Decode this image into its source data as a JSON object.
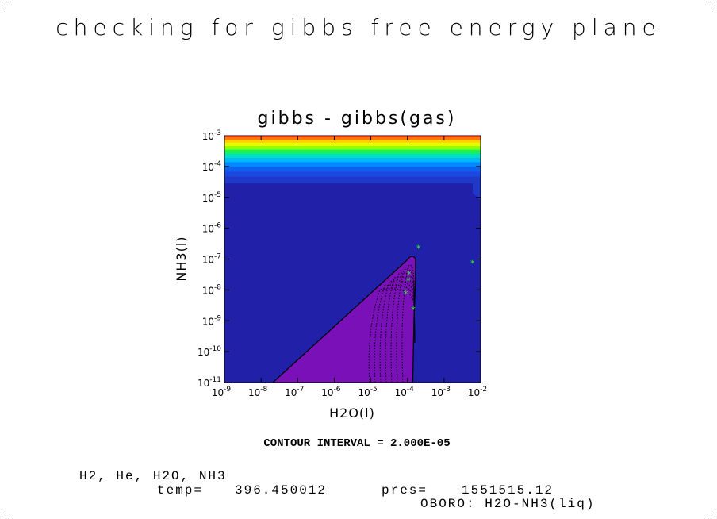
{
  "page_title": "checking for gibbs free energy plane",
  "contour_note": "CONTOUR INTERVAL = 2.000E-05",
  "footer": {
    "species": "H2, He, H2O, NH3",
    "temp_label": "temp=",
    "temp_value": "396.450012",
    "pres_label": "pres=",
    "pres_value": "1551515.12",
    "model": "OBORO: H2O-NH3(liq)"
  },
  "chart_data": {
    "type": "contour",
    "title": "gibbs - gibbs(gas)",
    "xlabel": "H2O(l)",
    "ylabel": "NH3(l)",
    "xscale": "log",
    "yscale": "log",
    "xlim": [
      1e-09,
      0.01
    ],
    "ylim": [
      1e-11,
      0.001
    ],
    "x_ticks": [
      {
        "base": "10",
        "exp": "-9"
      },
      {
        "base": "10",
        "exp": "-8"
      },
      {
        "base": "10",
        "exp": "-7"
      },
      {
        "base": "10",
        "exp": "-6"
      },
      {
        "base": "10",
        "exp": "-5"
      },
      {
        "base": "10",
        "exp": "-4"
      },
      {
        "base": "10",
        "exp": "-3"
      },
      {
        "base": "10",
        "exp": "-2"
      }
    ],
    "y_ticks": [
      {
        "base": "10",
        "exp": "-11"
      },
      {
        "base": "10",
        "exp": "-10"
      },
      {
        "base": "10",
        "exp": "-9"
      },
      {
        "base": "10",
        "exp": "-8"
      },
      {
        "base": "10",
        "exp": "-7"
      },
      {
        "base": "10",
        "exp": "-6"
      },
      {
        "base": "10",
        "exp": "-5"
      },
      {
        "base": "10",
        "exp": "-4"
      },
      {
        "base": "10",
        "exp": "-3"
      }
    ],
    "background_color": "#2020a8",
    "top_bands": [
      "#ff2010",
      "#ff7a00",
      "#ffd000",
      "#e6ff00",
      "#8cff00",
      "#19f060",
      "#00e0c0",
      "#00b8ff",
      "#0088ff",
      "#1060f0",
      "#1a48e0",
      "#2038c8"
    ],
    "region": {
      "fill_color": "#7a10b8",
      "boundary": [
        [
          2.1e-08,
          1e-11
        ],
        [
          0.00013,
          1.3e-07
        ],
        [
          0.00015,
          1e-09
        ],
        [
          0.00014,
          1e-11
        ]
      ]
    },
    "points": [
      {
        "x": 0.0002,
        "y": 2.3e-07
      },
      {
        "x": 0.006,
        "y": 7.5e-08
      },
      {
        "x": 0.00011,
        "y": 3.2e-08
      },
      {
        "x": 0.000105,
        "y": 2e-08
      },
      {
        "x": 9e-05,
        "y": 7.5e-09
      },
      {
        "x": 0.000145,
        "y": 2.3e-09
      }
    ],
    "point_color": "#22ff22"
  }
}
